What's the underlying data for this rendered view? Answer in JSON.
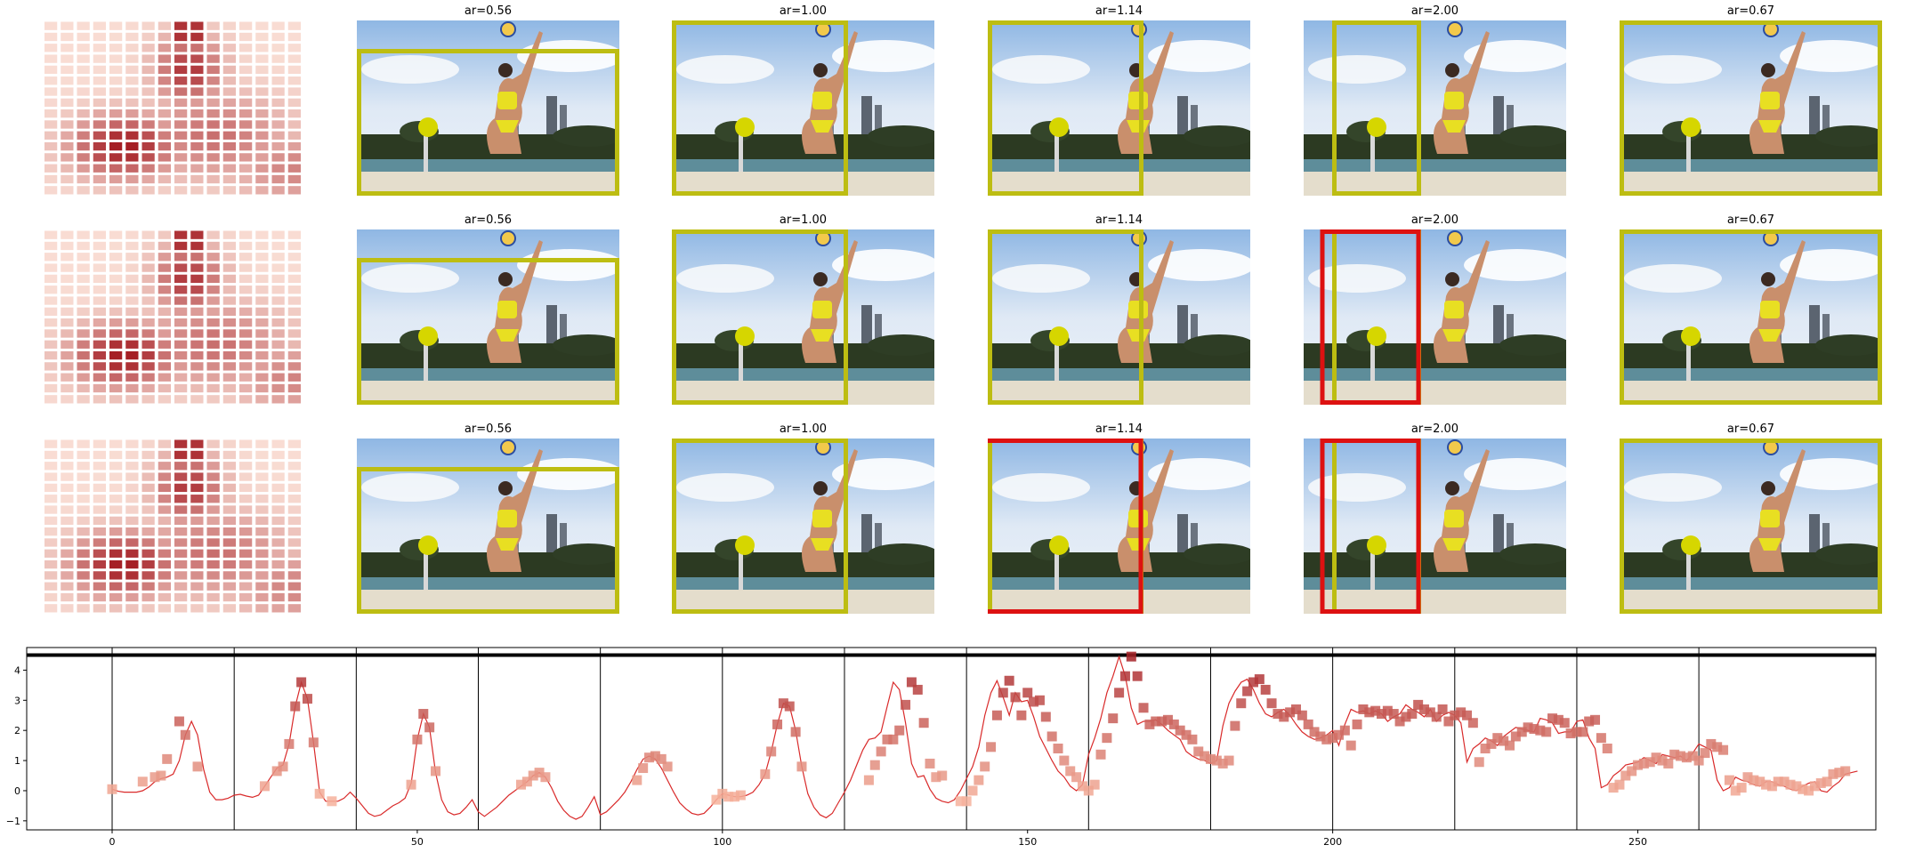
{
  "colors": {
    "box_yellow": "#bdbd12",
    "box_red": "#dd1111",
    "line_red": "#d92a2a",
    "separator": "#000000",
    "ball_yellow": "#d6d600",
    "heat_low": "#fde6dc",
    "heat_high": "#a51f25"
  },
  "rows": [
    {
      "cells": [
        {
          "title": "ar=0.56",
          "red_boxes": 0
        },
        {
          "title": "ar=1.00",
          "red_boxes": 0
        },
        {
          "title": "ar=1.14",
          "red_boxes": 0
        },
        {
          "title": "ar=2.00",
          "red_boxes": 0
        },
        {
          "title": "ar=0.67",
          "red_boxes": 0
        }
      ]
    },
    {
      "cells": [
        {
          "title": "ar=0.56",
          "red_boxes": 0
        },
        {
          "title": "ar=1.00",
          "red_boxes": 0
        },
        {
          "title": "ar=1.14",
          "red_boxes": 0
        },
        {
          "title": "ar=2.00",
          "red_boxes": 1
        },
        {
          "title": "ar=0.67",
          "red_boxes": 0
        }
      ]
    },
    {
      "cells": [
        {
          "title": "ar=0.56",
          "red_boxes": 0
        },
        {
          "title": "ar=1.00",
          "red_boxes": 0
        },
        {
          "title": "ar=1.14",
          "red_boxes": 1
        },
        {
          "title": "ar=2.00",
          "red_boxes": 1
        },
        {
          "title": "ar=0.67",
          "red_boxes": 0
        }
      ]
    }
  ],
  "chart_data": {
    "type": "line",
    "title": "",
    "xlabel": "",
    "ylabel": "",
    "xlim": [
      -14,
      289
    ],
    "ylim": [
      -1.3,
      4.75
    ],
    "xticks": [
      0,
      50,
      100,
      150,
      200,
      250
    ],
    "yticks": [
      -1,
      0,
      1,
      2,
      3,
      4
    ],
    "threshold_y": 4.5,
    "segment_boundaries": [
      0,
      20,
      40,
      60,
      80,
      100,
      120,
      140,
      160,
      180,
      200,
      220,
      240,
      260
    ],
    "series": [
      {
        "values": [
          0.05,
          -0.02,
          -0.05,
          -0.05,
          -0.05,
          0.0,
          0.12,
          0.3,
          0.4,
          0.45,
          0.55,
          1.0,
          1.85,
          2.3,
          1.85,
          0.7,
          -0.05,
          -0.3,
          -0.3,
          -0.25,
          -0.15,
          -0.12,
          -0.18,
          -0.22,
          -0.15,
          0.15,
          0.45,
          0.75,
          0.85,
          1.55,
          2.8,
          3.6,
          3.05,
          1.6,
          -0.05,
          -0.35,
          -0.35,
          -0.35,
          -0.25,
          -0.05,
          -0.25,
          -0.5,
          -0.75,
          -0.85,
          -0.8,
          -0.65,
          -0.5,
          -0.4,
          -0.25,
          0.25,
          1.7,
          2.55,
          2.1,
          0.6,
          -0.3,
          -0.7,
          -0.8,
          -0.75,
          -0.55,
          -0.3,
          -0.7,
          -0.85,
          -0.7,
          -0.55,
          -0.35,
          -0.15,
          0.0,
          0.15,
          0.3,
          0.5,
          0.6,
          0.45,
          0.1,
          -0.35,
          -0.65,
          -0.85,
          -0.95,
          -0.85,
          -0.55,
          -0.2,
          -0.8,
          -0.7,
          -0.5,
          -0.3,
          -0.05,
          0.3,
          0.7,
          1.05,
          1.15,
          1.05,
          0.75,
          0.35,
          -0.05,
          -0.4,
          -0.6,
          -0.75,
          -0.8,
          -0.75,
          -0.55,
          -0.3,
          -0.1,
          -0.15,
          -0.2,
          -0.2,
          -0.15,
          -0.05,
          0.2,
          0.55,
          1.3,
          2.2,
          2.9,
          2.8,
          2.0,
          0.8,
          -0.1,
          -0.55,
          -0.8,
          -0.9,
          -0.75,
          -0.4,
          -0.05,
          0.35,
          0.85,
          1.35,
          1.7,
          1.75,
          1.95,
          2.8,
          3.6,
          3.35,
          2.25,
          0.9,
          0.45,
          0.5,
          0.05,
          -0.25,
          -0.35,
          -0.4,
          -0.3,
          0.0,
          0.4,
          0.8,
          1.45,
          2.5,
          3.25,
          3.65,
          3.1,
          2.5,
          3.25,
          2.95,
          3.0,
          2.45,
          1.8,
          1.4,
          1.0,
          0.65,
          0.45,
          0.15,
          0.0,
          0.2,
          1.2,
          1.75,
          2.4,
          3.25,
          3.8,
          4.45,
          3.8,
          2.75,
          2.2,
          2.3,
          2.3,
          2.35,
          2.2,
          2.0,
          1.85,
          1.7,
          1.3,
          1.15,
          1.05,
          1.0,
          0.9,
          1.0,
          2.15,
          2.9,
          3.3,
          3.6,
          3.7,
          3.35,
          2.9,
          2.55,
          2.45,
          2.6,
          2.7,
          2.5,
          2.2,
          1.95,
          1.8,
          1.7,
          1.75,
          1.85,
          2.0,
          1.5,
          2.2,
          2.7,
          2.6,
          2.65,
          2.55,
          2.65,
          2.55,
          2.3,
          2.45,
          2.55,
          2.85,
          2.7,
          2.6,
          2.45,
          2.7,
          2.3,
          2.5,
          2.6,
          2.5,
          2.25,
          0.95,
          1.4,
          1.55,
          1.75,
          1.65,
          1.5,
          1.8,
          1.95,
          2.1,
          2.05,
          2.0,
          1.95,
          2.4,
          2.35,
          2.25,
          1.9,
          1.95,
          1.95,
          2.3,
          2.35,
          1.75,
          1.4,
          0.1,
          0.2,
          0.5,
          0.65,
          0.85,
          0.9,
          0.95,
          1.1,
          1.0,
          0.9,
          1.2,
          1.15,
          1.1,
          1.15,
          1.0,
          1.25,
          1.55,
          1.45,
          1.35,
          0.35,
          0.0,
          0.1,
          0.45,
          0.35,
          0.3,
          0.2,
          0.15,
          0.3,
          0.3,
          0.2,
          0.15,
          0.05,
          0.0,
          0.15,
          0.25,
          0.3,
          0.0,
          -0.05,
          0.15,
          0.3,
          0.55,
          0.6,
          0.65
        ],
        "markers": [
          [
            0,
            0.05
          ],
          [
            5,
            0.3
          ],
          [
            7,
            0.45
          ],
          [
            8,
            0.5
          ],
          [
            9,
            1.05
          ],
          [
            11,
            2.3
          ],
          [
            12,
            1.85
          ],
          [
            14,
            0.8
          ],
          [
            25,
            0.15
          ],
          [
            27,
            0.65
          ],
          [
            28,
            0.8
          ],
          [
            29,
            1.55
          ],
          [
            30,
            2.8
          ],
          [
            31,
            3.6
          ],
          [
            32,
            3.05
          ],
          [
            33,
            1.6
          ],
          [
            34,
            -0.1
          ],
          [
            36,
            -0.35
          ],
          [
            49,
            0.2
          ],
          [
            50,
            1.7
          ],
          [
            51,
            2.55
          ],
          [
            52,
            2.1
          ],
          [
            53,
            0.65
          ],
          [
            67,
            0.2
          ],
          [
            68,
            0.3
          ],
          [
            69,
            0.5
          ],
          [
            70,
            0.6
          ],
          [
            71,
            0.45
          ],
          [
            86,
            0.35
          ],
          [
            87,
            0.75
          ],
          [
            88,
            1.1
          ],
          [
            89,
            1.15
          ],
          [
            90,
            1.05
          ],
          [
            91,
            0.8
          ],
          [
            99,
            -0.3
          ],
          [
            100,
            -0.1
          ],
          [
            101,
            -0.2
          ],
          [
            102,
            -0.2
          ],
          [
            103,
            -0.15
          ],
          [
            107,
            0.55
          ],
          [
            108,
            1.3
          ],
          [
            109,
            2.2
          ],
          [
            110,
            2.9
          ],
          [
            111,
            2.8
          ],
          [
            112,
            1.95
          ],
          [
            113,
            0.8
          ],
          [
            124,
            0.35
          ],
          [
            125,
            0.85
          ],
          [
            126,
            1.3
          ],
          [
            127,
            1.7
          ],
          [
            128,
            1.7
          ],
          [
            129,
            2.0
          ],
          [
            130,
            2.85
          ],
          [
            131,
            3.6
          ],
          [
            132,
            3.35
          ],
          [
            133,
            2.25
          ],
          [
            134,
            0.9
          ],
          [
            135,
            0.45
          ],
          [
            136,
            0.5
          ],
          [
            139,
            -0.35
          ],
          [
            140,
            -0.35
          ],
          [
            141,
            0.0
          ],
          [
            142,
            0.35
          ],
          [
            143,
            0.8
          ],
          [
            144,
            1.45
          ],
          [
            145,
            2.5
          ],
          [
            146,
            3.25
          ],
          [
            147,
            3.65
          ],
          [
            148,
            3.1
          ],
          [
            149,
            2.5
          ],
          [
            150,
            3.25
          ],
          [
            151,
            2.95
          ],
          [
            152,
            3.0
          ],
          [
            153,
            2.45
          ],
          [
            154,
            1.8
          ],
          [
            155,
            1.4
          ],
          [
            156,
            1.0
          ],
          [
            157,
            0.65
          ],
          [
            158,
            0.45
          ],
          [
            159,
            0.15
          ],
          [
            160,
            0.0
          ],
          [
            161,
            0.2
          ],
          [
            162,
            1.2
          ],
          [
            163,
            1.75
          ],
          [
            164,
            2.4
          ],
          [
            165,
            3.25
          ],
          [
            166,
            3.8
          ],
          [
            167,
            4.45
          ],
          [
            168,
            3.8
          ],
          [
            169,
            2.75
          ],
          [
            170,
            2.2
          ],
          [
            171,
            2.3
          ],
          [
            172,
            2.3
          ],
          [
            173,
            2.35
          ],
          [
            174,
            2.2
          ],
          [
            175,
            2.0
          ],
          [
            176,
            1.85
          ],
          [
            177,
            1.7
          ],
          [
            178,
            1.3
          ],
          [
            179,
            1.15
          ],
          [
            180,
            1.05
          ],
          [
            181,
            1.0
          ],
          [
            182,
            0.9
          ],
          [
            183,
            1.0
          ],
          [
            184,
            2.15
          ],
          [
            185,
            2.9
          ],
          [
            186,
            3.3
          ],
          [
            187,
            3.6
          ],
          [
            188,
            3.7
          ],
          [
            189,
            3.35
          ],
          [
            190,
            2.9
          ],
          [
            191,
            2.55
          ],
          [
            192,
            2.45
          ],
          [
            193,
            2.6
          ],
          [
            194,
            2.7
          ],
          [
            195,
            2.5
          ],
          [
            196,
            2.2
          ],
          [
            197,
            1.95
          ],
          [
            198,
            1.8
          ],
          [
            199,
            1.7
          ],
          [
            200,
            1.75
          ],
          [
            201,
            1.85
          ],
          [
            202,
            2.0
          ],
          [
            203,
            1.5
          ],
          [
            204,
            2.2
          ],
          [
            205,
            2.7
          ],
          [
            206,
            2.6
          ],
          [
            207,
            2.65
          ],
          [
            208,
            2.55
          ],
          [
            209,
            2.65
          ],
          [
            210,
            2.55
          ],
          [
            211,
            2.3
          ],
          [
            212,
            2.45
          ],
          [
            213,
            2.55
          ],
          [
            214,
            2.85
          ],
          [
            215,
            2.7
          ],
          [
            216,
            2.6
          ],
          [
            217,
            2.45
          ],
          [
            218,
            2.7
          ],
          [
            219,
            2.3
          ],
          [
            220,
            2.5
          ],
          [
            221,
            2.6
          ],
          [
            222,
            2.5
          ],
          [
            223,
            2.25
          ],
          [
            224,
            0.95
          ],
          [
            225,
            1.4
          ],
          [
            226,
            1.55
          ],
          [
            227,
            1.75
          ],
          [
            228,
            1.65
          ],
          [
            229,
            1.5
          ],
          [
            230,
            1.8
          ],
          [
            231,
            1.95
          ],
          [
            232,
            2.1
          ],
          [
            233,
            2.05
          ],
          [
            234,
            2.0
          ],
          [
            235,
            1.95
          ],
          [
            236,
            2.4
          ],
          [
            237,
            2.35
          ],
          [
            238,
            2.25
          ],
          [
            239,
            1.9
          ],
          [
            240,
            1.95
          ],
          [
            241,
            1.95
          ],
          [
            242,
            2.3
          ],
          [
            243,
            2.35
          ],
          [
            244,
            1.75
          ],
          [
            245,
            1.4
          ],
          [
            246,
            0.1
          ],
          [
            247,
            0.2
          ],
          [
            248,
            0.5
          ],
          [
            249,
            0.65
          ],
          [
            250,
            0.85
          ],
          [
            251,
            0.9
          ],
          [
            252,
            0.95
          ],
          [
            253,
            1.1
          ],
          [
            254,
            1.0
          ],
          [
            255,
            0.9
          ],
          [
            256,
            1.2
          ],
          [
            257,
            1.15
          ],
          [
            258,
            1.1
          ],
          [
            259,
            1.15
          ],
          [
            260,
            1.0
          ],
          [
            261,
            1.25
          ],
          [
            262,
            1.55
          ],
          [
            263,
            1.45
          ],
          [
            264,
            1.35
          ],
          [
            265,
            0.35
          ],
          [
            266,
            0.0
          ],
          [
            267,
            0.1
          ],
          [
            268,
            0.45
          ],
          [
            269,
            0.35
          ],
          [
            270,
            0.3
          ],
          [
            271,
            0.2
          ],
          [
            272,
            0.15
          ],
          [
            273,
            0.3
          ],
          [
            274,
            0.3
          ],
          [
            275,
            0.2
          ],
          [
            276,
            0.15
          ],
          [
            277,
            0.05
          ],
          [
            278,
            0.0
          ],
          [
            279,
            0.15
          ],
          [
            280,
            0.25
          ],
          [
            281,
            0.3
          ],
          [
            282,
            0.55
          ],
          [
            283,
            0.6
          ],
          [
            284,
            0.65
          ]
        ]
      }
    ]
  }
}
